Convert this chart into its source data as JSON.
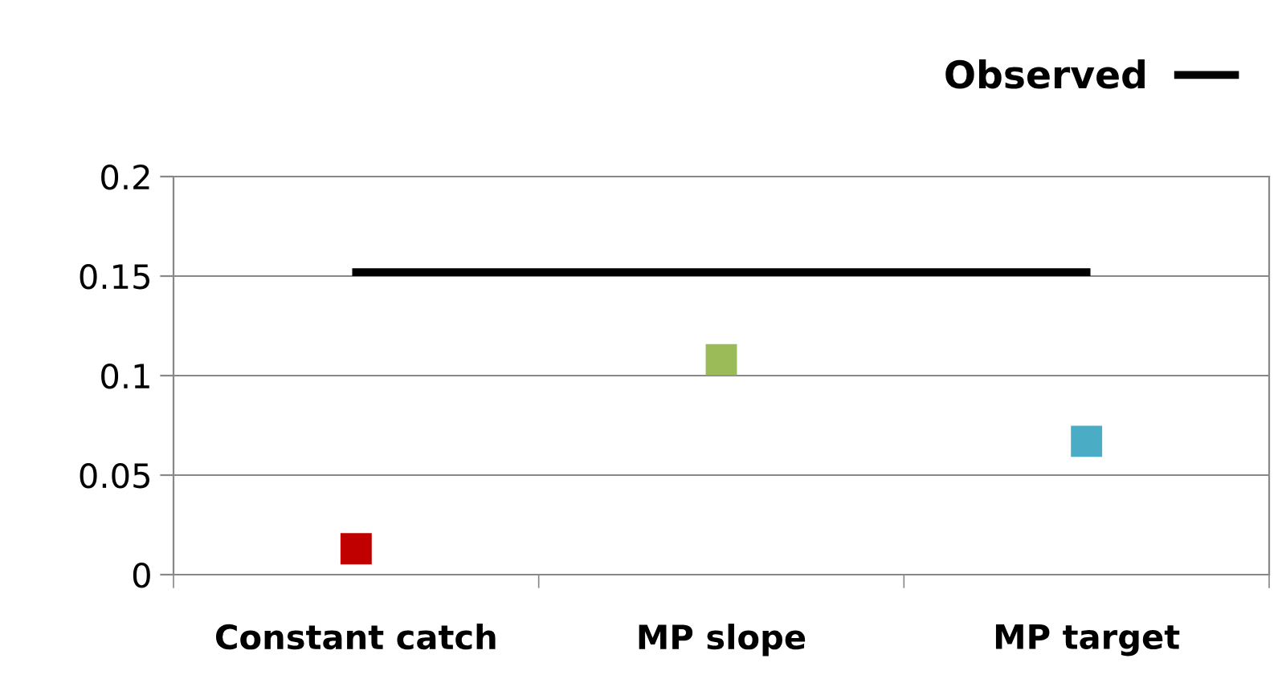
{
  "chart_data": {
    "type": "scatter",
    "categories": [
      "Constant catch",
      "MP slope",
      "MP target"
    ],
    "series": [
      {
        "values": [
          0.013,
          0.108,
          0.067
        ],
        "colors": [
          "#c00000",
          "#9bbb59",
          "#4bacc6"
        ],
        "marker": "square"
      },
      {
        "type": "line",
        "name": "Observed",
        "color": "#000000",
        "values": [
          0.152,
          0.152,
          0.152
        ],
        "marker": "none",
        "line_style": "solid"
      }
    ],
    "ylim": [
      0,
      0.2
    ],
    "yticks": [
      0,
      {
        "value": 0.05,
        "label": "0.05"
      },
      {
        "value": 0.1,
        "label": "0.1"
      },
      {
        "value": 0.15,
        "label": "0.15"
      },
      {
        "value": 0.2,
        "label": "0.2"
      }
    ],
    "grid": "y",
    "legend": "top right"
  }
}
